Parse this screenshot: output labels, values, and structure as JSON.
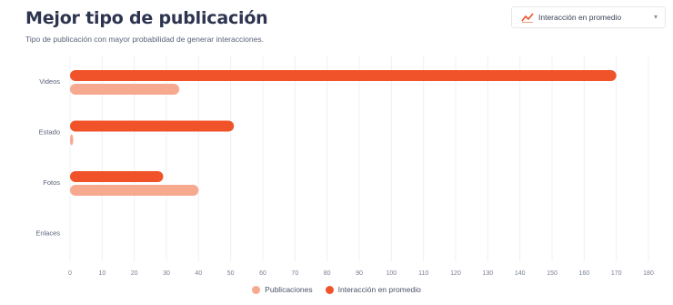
{
  "header": {
    "title": "Mejor tipo de publicación",
    "subtitle": "Tipo de publicación con mayor probabilidad de generar interacciones."
  },
  "dropdown": {
    "icon": "line-chart-icon",
    "selected": "Interacción en promedio",
    "caret": "▾"
  },
  "legend": {
    "items": [
      {
        "label": "Publicaciones",
        "color": "#f7a98f"
      },
      {
        "label": "Interacción en promedio",
        "color": "#f0532a"
      }
    ]
  },
  "chart_data": {
    "type": "bar",
    "orientation": "horizontal",
    "categories": [
      "Videos",
      "Estado",
      "Fotos",
      "Enlaces"
    ],
    "series": [
      {
        "name": "Interacción en promedio",
        "color": "#f0532a",
        "values": [
          170,
          51,
          29,
          0
        ]
      },
      {
        "name": "Publicaciones",
        "color": "#f7a98f",
        "values": [
          34,
          1,
          40,
          0
        ]
      }
    ],
    "xlim": [
      0,
      180
    ],
    "xticks": [
      0,
      10,
      20,
      30,
      40,
      50,
      60,
      70,
      80,
      90,
      100,
      110,
      120,
      130,
      140,
      150,
      160,
      170,
      180
    ],
    "grid": true,
    "legend_position": "bottom"
  }
}
